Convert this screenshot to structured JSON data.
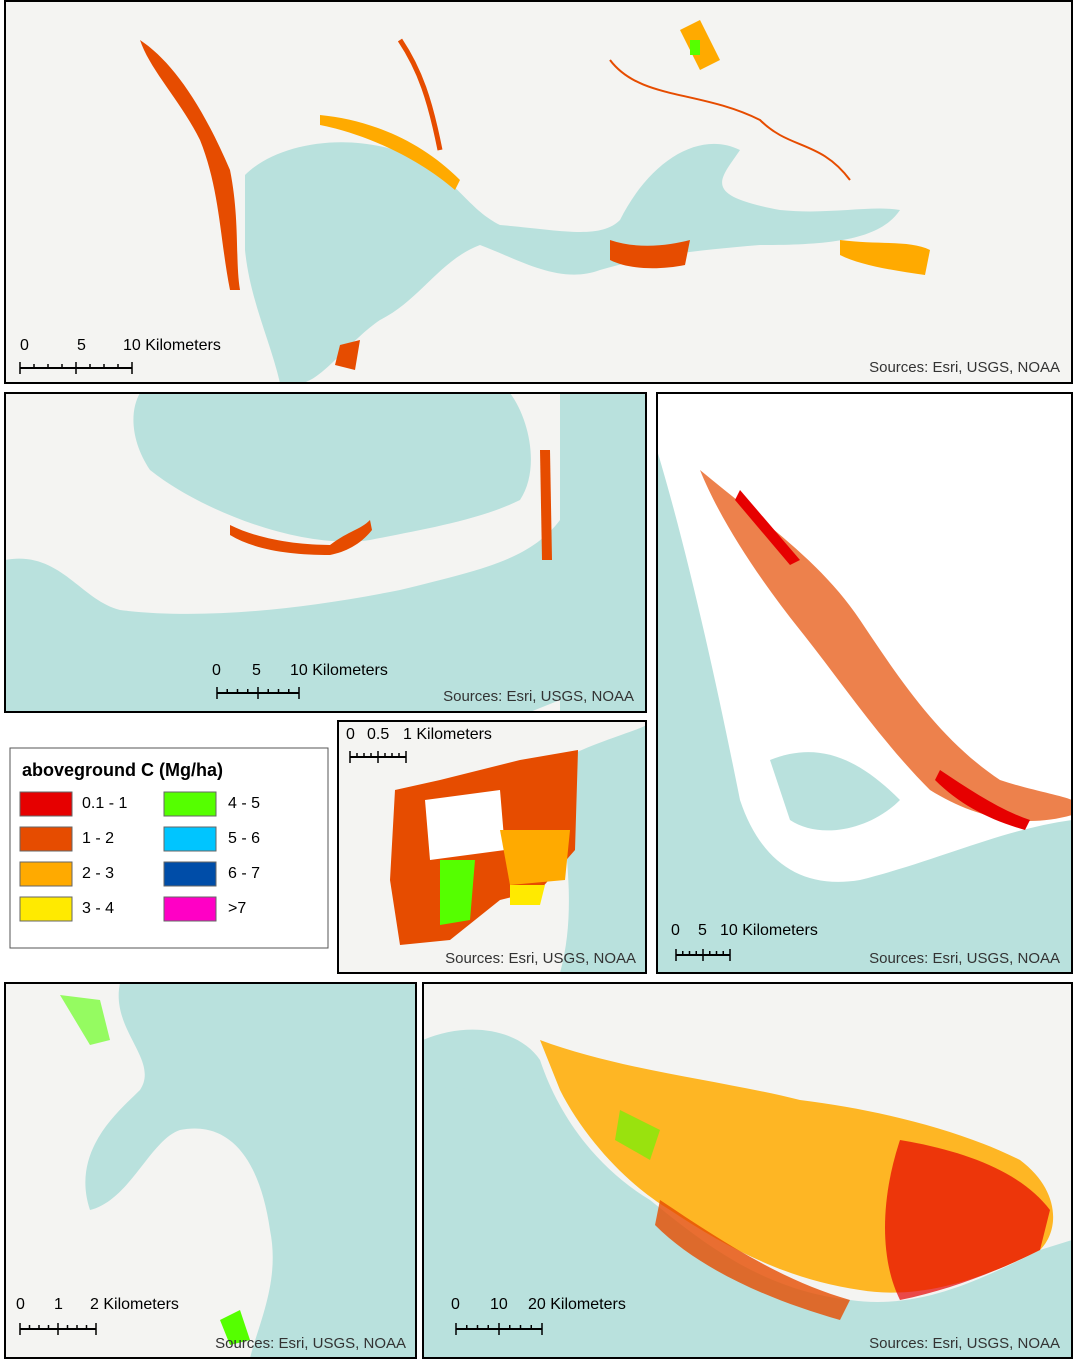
{
  "panels": [
    {
      "scale_labels": [
        "0",
        "5",
        "10 Kilometers"
      ],
      "source": "Sources: Esri, USGS, NOAA"
    },
    {
      "scale_labels": [
        "0",
        "5",
        "10 Kilometers"
      ],
      "source": "Sources: Esri, USGS, NOAA"
    },
    {
      "scale_labels": [
        "0",
        "5",
        "10 Kilometers"
      ],
      "source": "Sources: Esri, USGS, NOAA"
    },
    {
      "scale_labels": [
        "0",
        "0.5",
        "1 Kilometers"
      ],
      "source": "Sources: Esri, USGS, NOAA"
    },
    {
      "scale_labels": [
        "0",
        "1",
        "2 Kilometers"
      ],
      "source": "Sources: Esri, USGS, NOAA"
    },
    {
      "scale_labels": [
        "0",
        "10",
        "20 Kilometers"
      ],
      "source": "Sources: Esri, USGS, NOAA"
    }
  ],
  "legend": {
    "title": "aboveground C (Mg/ha)",
    "items": [
      {
        "label": "0.1 - 1",
        "color": "#e60000"
      },
      {
        "label": "1 - 2",
        "color": "#e64c00"
      },
      {
        "label": "2 - 3",
        "color": "#ffaa00"
      },
      {
        "label": "3 - 4",
        "color": "#ffea00"
      },
      {
        "label": "4 - 5",
        "color": "#55ff00"
      },
      {
        "label": "5 - 6",
        "color": "#00c5ff"
      },
      {
        "label": "6 - 7",
        "color": "#004da8"
      },
      {
        "label": ">7",
        "color": "#ff00c5"
      }
    ]
  }
}
